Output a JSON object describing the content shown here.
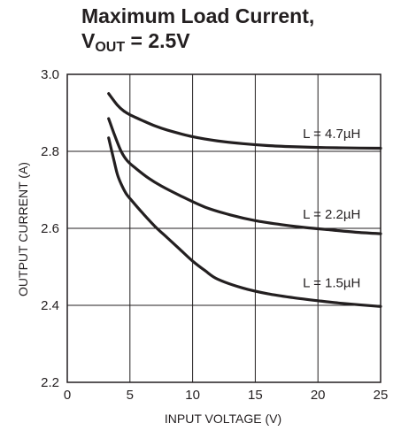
{
  "chart_data": {
    "type": "line",
    "title_line1": "Maximum Load Current,",
    "title_line2_prefix": "V",
    "title_line2_sub": "OUT",
    "title_line2_rest": " = 2.5V",
    "xlabel": "INPUT VOLTAGE (V)",
    "ylabel": "OUTPUT CURRENT (A)",
    "xlim": [
      0,
      25
    ],
    "ylim": [
      2.2,
      3.0
    ],
    "xticks": [
      0,
      5,
      10,
      15,
      20,
      25
    ],
    "xtick_labels": [
      "0",
      "5",
      "10",
      "15",
      "20",
      "25"
    ],
    "yticks": [
      2.2,
      2.4,
      2.6,
      2.8,
      3.0
    ],
    "ytick_labels": [
      "2.2",
      "2.4",
      "2.6",
      "2.8",
      "3.0"
    ],
    "grid": true,
    "series": [
      {
        "name": "L = 4.7µH",
        "x": [
          3.3,
          4.0,
          4.5,
          5,
          6,
          7,
          8,
          10,
          12,
          14,
          16,
          18,
          20,
          22,
          25
        ],
        "y": [
          2.95,
          2.92,
          2.905,
          2.895,
          2.88,
          2.866,
          2.855,
          2.838,
          2.827,
          2.82,
          2.815,
          2.812,
          2.81,
          2.809,
          2.808
        ]
      },
      {
        "name": "L = 2.2µH",
        "x": [
          3.3,
          3.8,
          4.3,
          4.8,
          5.5,
          6.5,
          7.5,
          9,
          11,
          13,
          15,
          17,
          19,
          21,
          23,
          25
        ],
        "y": [
          2.885,
          2.84,
          2.8,
          2.775,
          2.755,
          2.73,
          2.71,
          2.685,
          2.655,
          2.635,
          2.62,
          2.61,
          2.602,
          2.596,
          2.59,
          2.586
        ]
      },
      {
        "name": "L = 1.5µH",
        "x": [
          3.3,
          3.7,
          4.0,
          4.3,
          4.7,
          5.2,
          6,
          7,
          8,
          9,
          10,
          11,
          12,
          14,
          16,
          18,
          20,
          22,
          25
        ],
        "y": [
          2.835,
          2.78,
          2.74,
          2.715,
          2.69,
          2.67,
          2.64,
          2.605,
          2.575,
          2.545,
          2.515,
          2.49,
          2.468,
          2.445,
          2.43,
          2.42,
          2.412,
          2.405,
          2.397
        ]
      }
    ],
    "colors": {
      "line": "#231f20",
      "grid": "#231f20",
      "background": "#ffffff"
    }
  }
}
